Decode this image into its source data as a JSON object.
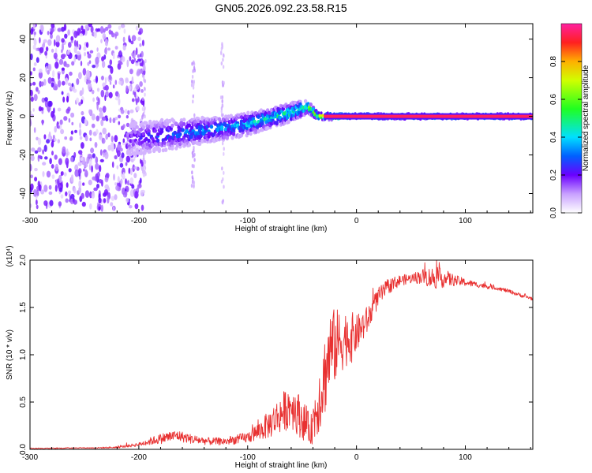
{
  "figure": {
    "title": "GN05.2026.092.23.58.R15"
  },
  "chart_data": [
    {
      "type": "heatmap",
      "xlabel": "Height of straight line (km)",
      "ylabel": "Frequency (Hz)",
      "xlim": [
        -300,
        162
      ],
      "ylim": [
        -50,
        48
      ],
      "xticks": [
        -300,
        -200,
        -100,
        0,
        100
      ],
      "yticks": [
        -40,
        -20,
        0,
        20,
        40
      ],
      "colorbar": {
        "label": "Normalized spectral amplitude",
        "range": [
          0.0,
          1.0
        ],
        "ticks": [
          0.0,
          0.2,
          0.4,
          0.6,
          0.8
        ]
      },
      "noise_region": {
        "x": [
          -300,
          -195
        ],
        "freq": [
          -48,
          48
        ],
        "amplitude": 0.05
      },
      "ridge": {
        "x": [
          -210,
          -180,
          -150,
          -120,
          -100,
          -80,
          -60,
          -50,
          -45,
          -35,
          -20,
          -10,
          0,
          162
        ],
        "freq": [
          -12,
          -10,
          -8,
          -6,
          -4,
          -1,
          2,
          4,
          5,
          0,
          0,
          0,
          0,
          0
        ],
        "width": [
          8,
          8,
          7,
          6,
          6,
          5,
          5,
          4,
          3,
          2,
          2,
          1.5,
          1.5,
          1.5
        ],
        "amplitude": [
          0.2,
          0.3,
          0.35,
          0.35,
          0.4,
          0.45,
          0.5,
          0.5,
          0.6,
          0.8,
          0.9,
          0.95,
          0.97,
          0.97
        ]
      }
    },
    {
      "type": "line",
      "xlabel": "Height of straight line (km)",
      "ylabel": "SNR (10 * v/v)",
      "yscale_label": "(x10⁴)",
      "xlim": [
        -300,
        162
      ],
      "ylim": [
        0,
        2.0
      ],
      "xticks": [
        -300,
        -200,
        -100,
        0,
        100
      ],
      "yticks": [
        0.0,
        0.5,
        1.0,
        1.5,
        2.0
      ],
      "series": [
        {
          "color": "#e83030",
          "x": [
            -300,
            -280,
            -260,
            -240,
            -220,
            -200,
            -190,
            -175,
            -165,
            -150,
            -135,
            -120,
            -110,
            -100,
            -90,
            -80,
            -70,
            -60,
            -50,
            -42,
            -38,
            -32,
            -28,
            -24,
            -20,
            -15,
            -10,
            -5,
            0,
            10,
            20,
            30,
            40,
            50,
            60,
            70,
            80,
            90,
            100,
            110,
            120,
            130,
            140,
            150,
            162
          ],
          "y": [
            0.01,
            0.01,
            0.015,
            0.015,
            0.02,
            0.05,
            0.08,
            0.12,
            0.14,
            0.1,
            0.08,
            0.08,
            0.1,
            0.12,
            0.18,
            0.25,
            0.35,
            0.45,
            0.3,
            0.18,
            0.35,
            0.6,
            0.8,
            1.0,
            1.05,
            1.1,
            1.15,
            1.15,
            1.2,
            1.35,
            1.6,
            1.72,
            1.78,
            1.8,
            1.82,
            1.8,
            1.8,
            1.78,
            1.76,
            1.74,
            1.72,
            1.7,
            1.67,
            1.63,
            1.59
          ],
          "noise": [
            0.005,
            0.005,
            0.005,
            0.005,
            0.01,
            0.02,
            0.04,
            0.06,
            0.06,
            0.05,
            0.04,
            0.04,
            0.05,
            0.06,
            0.1,
            0.15,
            0.2,
            0.25,
            0.22,
            0.15,
            0.3,
            0.4,
            0.45,
            0.45,
            0.4,
            0.35,
            0.3,
            0.28,
            0.2,
            0.15,
            0.1,
            0.08,
            0.06,
            0.05,
            0.08,
            0.12,
            0.1,
            0.06,
            0.04,
            0.03,
            0.025,
            0.02,
            0.02,
            0.02,
            0.02
          ]
        }
      ]
    }
  ]
}
